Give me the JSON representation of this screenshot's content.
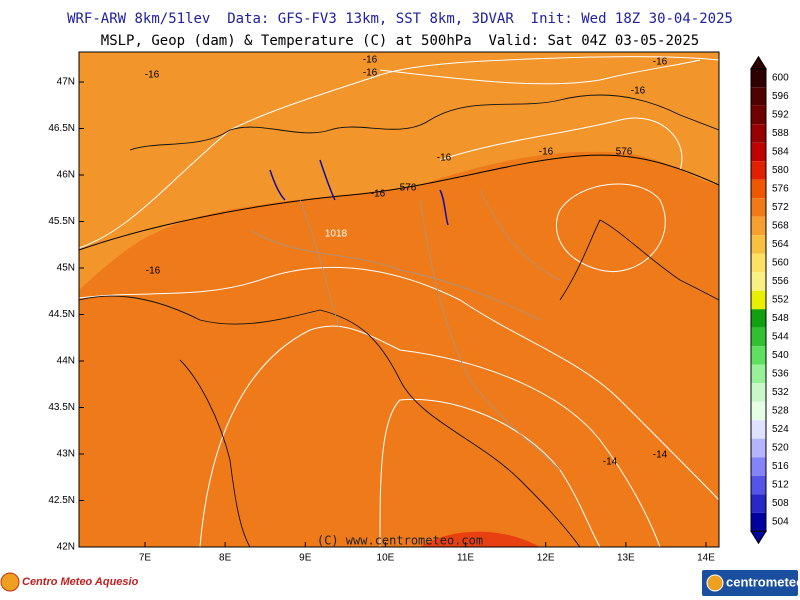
{
  "header": {
    "line1": "WRF-ARW 8km/51lev  Data: GFS-FV3 13km, SST 8km, 3DVAR  Init: Wed 18Z 30-04-2025",
    "line2": "MSLP, Geop (dam) & Temperature (C) at 500hPa  Valid: Sat 04Z 03-05-2025"
  },
  "map": {
    "lat_ticks": [
      {
        "value": 42,
        "label": "42N"
      },
      {
        "value": 42.5,
        "label": "42.5N"
      },
      {
        "value": 43,
        "label": "43N"
      },
      {
        "value": 43.5,
        "label": "43.5N"
      },
      {
        "value": 44,
        "label": "44N"
      },
      {
        "value": 44.5,
        "label": "44.5N"
      },
      {
        "value": 45,
        "label": "45N"
      },
      {
        "value": 45.5,
        "label": "45.5N"
      },
      {
        "value": 46,
        "label": "46N"
      },
      {
        "value": 46.5,
        "label": "46.5N"
      },
      {
        "value": 47,
        "label": "47N"
      }
    ],
    "lon_ticks": [
      {
        "value": 7,
        "label": "7E"
      },
      {
        "value": 8,
        "label": "8E"
      },
      {
        "value": 9,
        "label": "9E"
      },
      {
        "value": 10,
        "label": "10E"
      },
      {
        "value": 11,
        "label": "11E"
      },
      {
        "value": 12,
        "label": "12E"
      },
      {
        "value": 13,
        "label": "13E"
      },
      {
        "value": 14,
        "label": "14E"
      }
    ],
    "contour_labels": [
      "-16",
      "-16",
      "-16",
      "-16",
      "-16",
      "-16",
      "-16",
      "-16",
      "-16",
      "576",
      "576",
      "1018",
      "-14",
      "-14"
    ],
    "credit": "(C) www.centrometeo.com"
  },
  "colorbar": {
    "levels": [
      600,
      596,
      592,
      588,
      584,
      580,
      576,
      572,
      568,
      564,
      560,
      556,
      552,
      548,
      544,
      540,
      536,
      532,
      528,
      524,
      520,
      516,
      512,
      508,
      504
    ],
    "colors": [
      "#300000",
      "#500000",
      "#700000",
      "#980000",
      "#c00000",
      "#e02000",
      "#f05800",
      "#f07a18",
      "#f5a030",
      "#f8c040",
      "#ffe060",
      "#f8f080",
      "#e8f000",
      "#10a010",
      "#30c030",
      "#60e060",
      "#98f098",
      "#c8f8c8",
      "#e4ffe4",
      "#e0e0ff",
      "#b4b4ff",
      "#8484f8",
      "#5454e8",
      "#2828c8",
      "#0000a0"
    ]
  },
  "logos": {
    "left": "Centro Meteo Aquesio",
    "right": "centrometeo"
  }
}
